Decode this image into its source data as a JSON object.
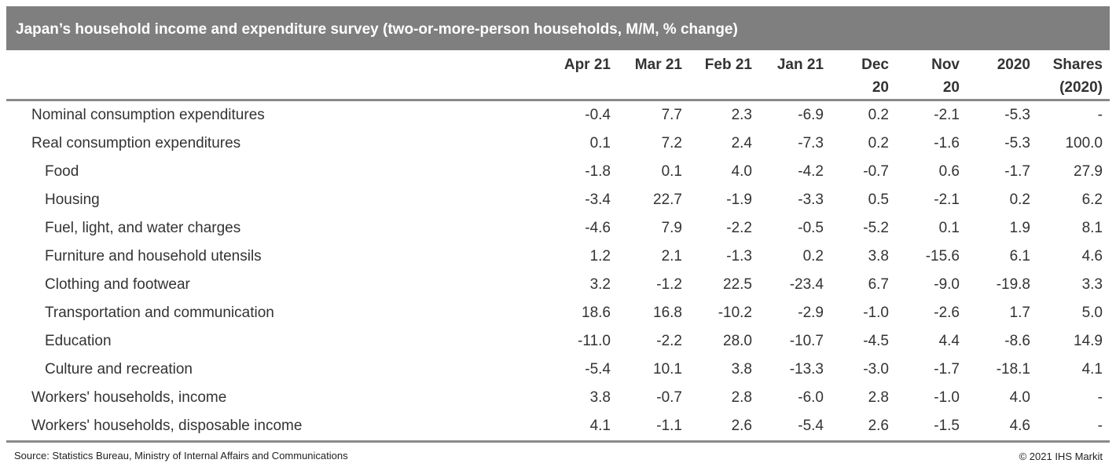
{
  "title": "Japan’s household income and expenditure survey (two-or-more-person households, M/M, % change)",
  "columns": [
    "Apr 21",
    "Mar 21",
    "Feb 21",
    "Jan 21",
    "Dec 20",
    "Nov 20",
    "2020",
    "Shares (2020)"
  ],
  "column_lines": [
    [
      "Apr 21"
    ],
    [
      "Mar 21"
    ],
    [
      "Feb 21"
    ],
    [
      "Jan 21"
    ],
    [
      "Dec",
      "20"
    ],
    [
      "Nov",
      "20"
    ],
    [
      "2020"
    ],
    [
      "Shares",
      "(2020)"
    ]
  ],
  "rows": [
    {
      "label": "Nominal consumption expenditures",
      "indent": false,
      "values": [
        "-0.4",
        "7.7",
        "2.3",
        "-6.9",
        "0.2",
        "-2.1",
        "-5.3",
        "-"
      ]
    },
    {
      "label": "Real consumption expenditures",
      "indent": false,
      "values": [
        "0.1",
        "7.2",
        "2.4",
        "-7.3",
        "0.2",
        "-1.6",
        "-5.3",
        "100.0"
      ]
    },
    {
      "label": "Food",
      "indent": true,
      "values": [
        "-1.8",
        "0.1",
        "4.0",
        "-4.2",
        "-0.7",
        "0.6",
        "-1.7",
        "27.9"
      ]
    },
    {
      "label": "Housing",
      "indent": true,
      "values": [
        "-3.4",
        "22.7",
        "-1.9",
        "-3.3",
        "0.5",
        "-2.1",
        "0.2",
        "6.2"
      ]
    },
    {
      "label": "Fuel, light, and water charges",
      "indent": true,
      "values": [
        "-4.6",
        "7.9",
        "-2.2",
        "-0.5",
        "-5.2",
        "0.1",
        "1.9",
        "8.1"
      ]
    },
    {
      "label": "Furniture and household utensils",
      "indent": true,
      "values": [
        "1.2",
        "2.1",
        "-1.3",
        "0.2",
        "3.8",
        "-15.6",
        "6.1",
        "4.6"
      ]
    },
    {
      "label": "Clothing and footwear",
      "indent": true,
      "values": [
        "3.2",
        "-1.2",
        "22.5",
        "-23.4",
        "6.7",
        "-9.0",
        "-19.8",
        "3.3"
      ]
    },
    {
      "label": "Transportation and communication",
      "indent": true,
      "values": [
        "18.6",
        "16.8",
        "-10.2",
        "-2.9",
        "-1.0",
        "-2.6",
        "1.7",
        "5.0"
      ]
    },
    {
      "label": "Education",
      "indent": true,
      "values": [
        "-11.0",
        "-2.2",
        "28.0",
        "-10.7",
        "-4.5",
        "4.4",
        "-8.6",
        "14.9"
      ]
    },
    {
      "label": "Culture and recreation",
      "indent": true,
      "values": [
        "-5.4",
        "10.1",
        "3.8",
        "-13.3",
        "-3.0",
        "-1.7",
        "-18.1",
        "4.1"
      ]
    },
    {
      "label": "Workers' households, income",
      "indent": false,
      "values": [
        "3.8",
        "-0.7",
        "2.8",
        "-6.0",
        "2.8",
        "-1.0",
        "4.0",
        "-"
      ]
    },
    {
      "label": "Workers' households, disposable income",
      "indent": false,
      "values": [
        "4.1",
        "-1.1",
        "2.6",
        "-5.4",
        "2.6",
        "-1.5",
        "4.6",
        "-"
      ]
    }
  ],
  "source": "Source: Statistics Bureau, Ministry of Internal Affairs and Communications",
  "copyright": "© 2021 IHS Markit",
  "colors": {
    "title_bar": "#7f7f7f",
    "rule": "#8a8a8a"
  }
}
